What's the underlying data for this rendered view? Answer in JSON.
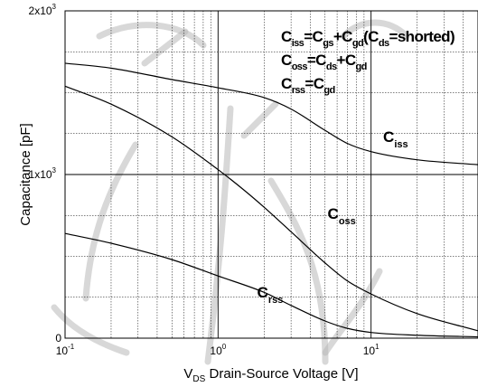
{
  "chart_data": {
    "type": "line",
    "xlabel": {
      "prefix": "V",
      "sub": "DS",
      "rest": " Drain-Source Voltage [V]"
    },
    "ylabel": "Capacitance   [pF]",
    "x_scale": "log",
    "xlim": [
      0.1,
      50
    ],
    "ylim": [
      0,
      2000
    ],
    "grid": true,
    "x_ticks": [
      {
        "value": 0.1,
        "base": "10",
        "exp": "-1"
      },
      {
        "value": 1,
        "base": "10",
        "exp": "0"
      },
      {
        "value": 10,
        "base": "10",
        "exp": "1"
      }
    ],
    "y_ticks": [
      {
        "value": 0,
        "label": "0",
        "exp": ""
      },
      {
        "value": 1000,
        "label": "1x10",
        "exp": "3"
      },
      {
        "value": 2000,
        "label": "2x10",
        "exp": "3"
      }
    ],
    "series": [
      {
        "name": "iss",
        "x": [
          0.1,
          0.2,
          0.5,
          1,
          2,
          3,
          5,
          7,
          10,
          20,
          50
        ],
        "y": [
          1680,
          1650,
          1580,
          1530,
          1470,
          1400,
          1270,
          1190,
          1140,
          1090,
          1060
        ]
      },
      {
        "name": "oss",
        "x": [
          0.1,
          0.2,
          0.5,
          1,
          1.5,
          2,
          3,
          5,
          7,
          10,
          20,
          50
        ],
        "y": [
          1540,
          1430,
          1230,
          1030,
          900,
          800,
          650,
          460,
          350,
          270,
          150,
          45
        ]
      },
      {
        "name": "rss",
        "x": [
          0.1,
          0.2,
          0.5,
          1,
          2,
          3,
          5,
          7,
          10,
          20,
          50
        ],
        "y": [
          640,
          580,
          480,
          380,
          280,
          200,
          105,
          60,
          35,
          18,
          8
        ]
      }
    ],
    "annotations": {
      "equations": [
        [
          {
            "t": "C",
            "s": false
          },
          {
            "t": "iss",
            "s": true
          },
          {
            "t": "=C",
            "s": false
          },
          {
            "t": "gs",
            "s": true
          },
          {
            "t": "+C",
            "s": false
          },
          {
            "t": "gd",
            "s": true
          },
          {
            "t": "(C",
            "s": false
          },
          {
            "t": "ds",
            "s": true
          },
          {
            "t": "=shorted)",
            "s": false
          }
        ],
        [
          {
            "t": "C",
            "s": false
          },
          {
            "t": "oss",
            "s": true
          },
          {
            "t": "=C",
            "s": false
          },
          {
            "t": "ds",
            "s": true
          },
          {
            "t": "+C",
            "s": false
          },
          {
            "t": "gd",
            "s": true
          }
        ],
        [
          {
            "t": "C",
            "s": false
          },
          {
            "t": "rss",
            "s": true
          },
          {
            "t": "=C",
            "s": false
          },
          {
            "t": "gd",
            "s": true
          }
        ]
      ],
      "curve_labels": [
        {
          "main": "C",
          "sub": "iss",
          "x": 12,
          "y": 1200
        },
        {
          "main": "C",
          "sub": "oss",
          "x": 5.2,
          "y": 730
        },
        {
          "main": "C",
          "sub": "rss",
          "x": 1.8,
          "y": 250
        }
      ]
    }
  }
}
